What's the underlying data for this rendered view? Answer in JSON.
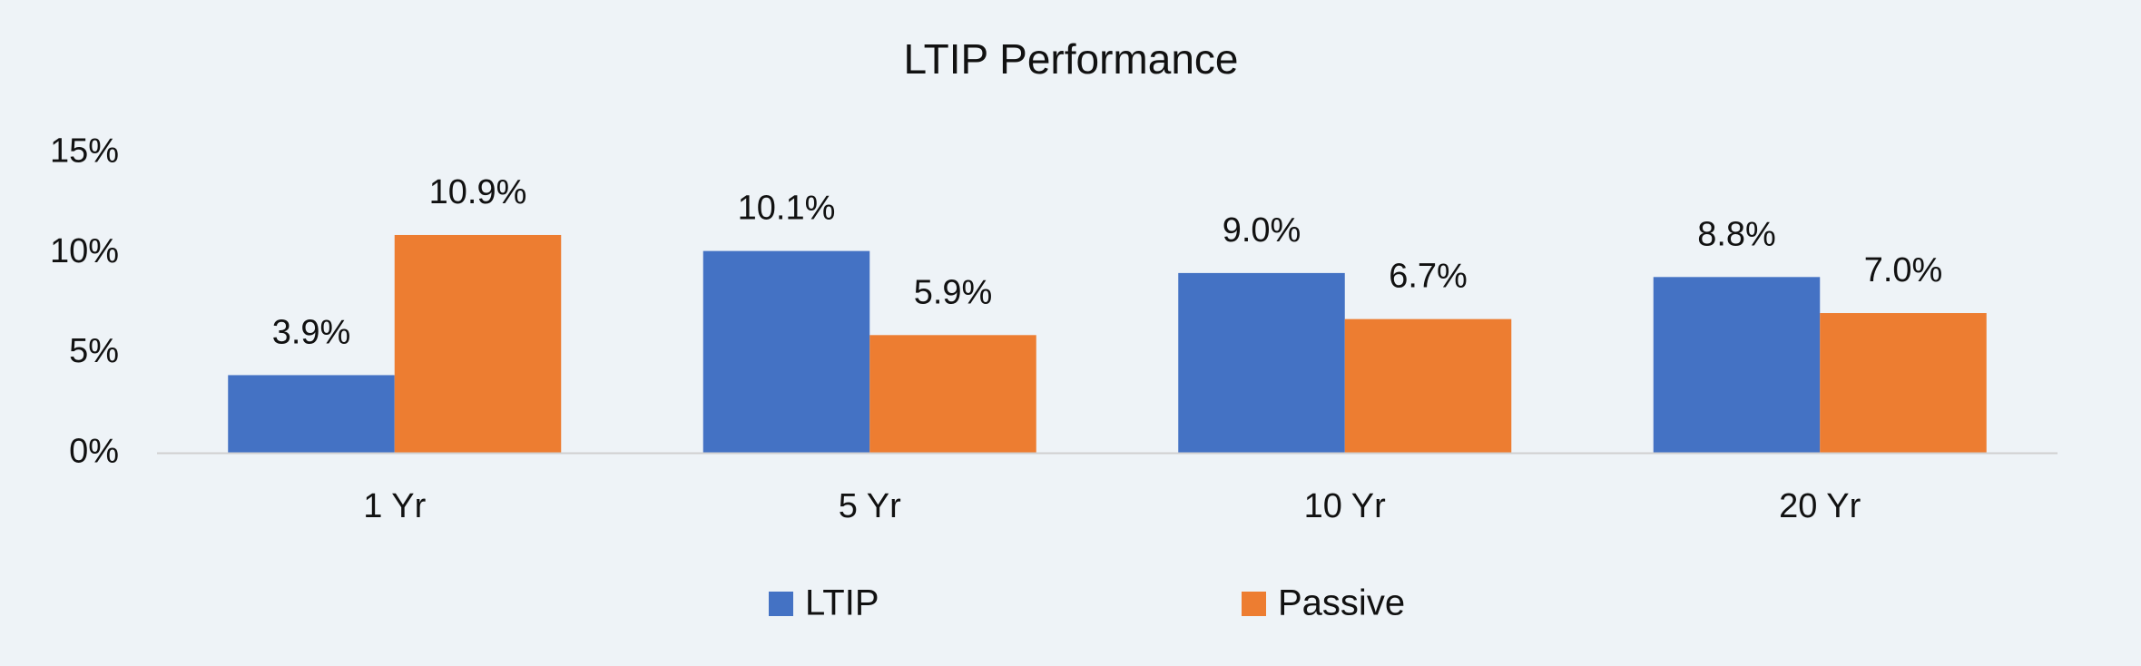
{
  "chart_data": {
    "type": "bar",
    "title": "LTIP Performance",
    "categories": [
      "1 Yr",
      "5 Yr",
      "10 Yr",
      "20 Yr"
    ],
    "series": [
      {
        "name": "LTIP",
        "color": "#4472c4",
        "values": [
          3.9,
          10.1,
          9.0,
          8.8
        ],
        "value_labels": [
          "3.9%",
          "10.1%",
          "9.0%",
          "8.8%"
        ]
      },
      {
        "name": "Passive",
        "color": "#ed7d31",
        "values": [
          10.9,
          5.9,
          6.7,
          7.0
        ],
        "value_labels": [
          "10.9%",
          "5.9%",
          "6.7%",
          "7.0%"
        ]
      }
    ],
    "ylim": [
      0,
      15
    ],
    "yticks": [
      {
        "value": 0,
        "label": "0%"
      },
      {
        "value": 5,
        "label": "5%"
      },
      {
        "value": 10,
        "label": "10%"
      },
      {
        "value": 15,
        "label": "15%"
      }
    ],
    "grid": false,
    "legend": "bottom"
  }
}
